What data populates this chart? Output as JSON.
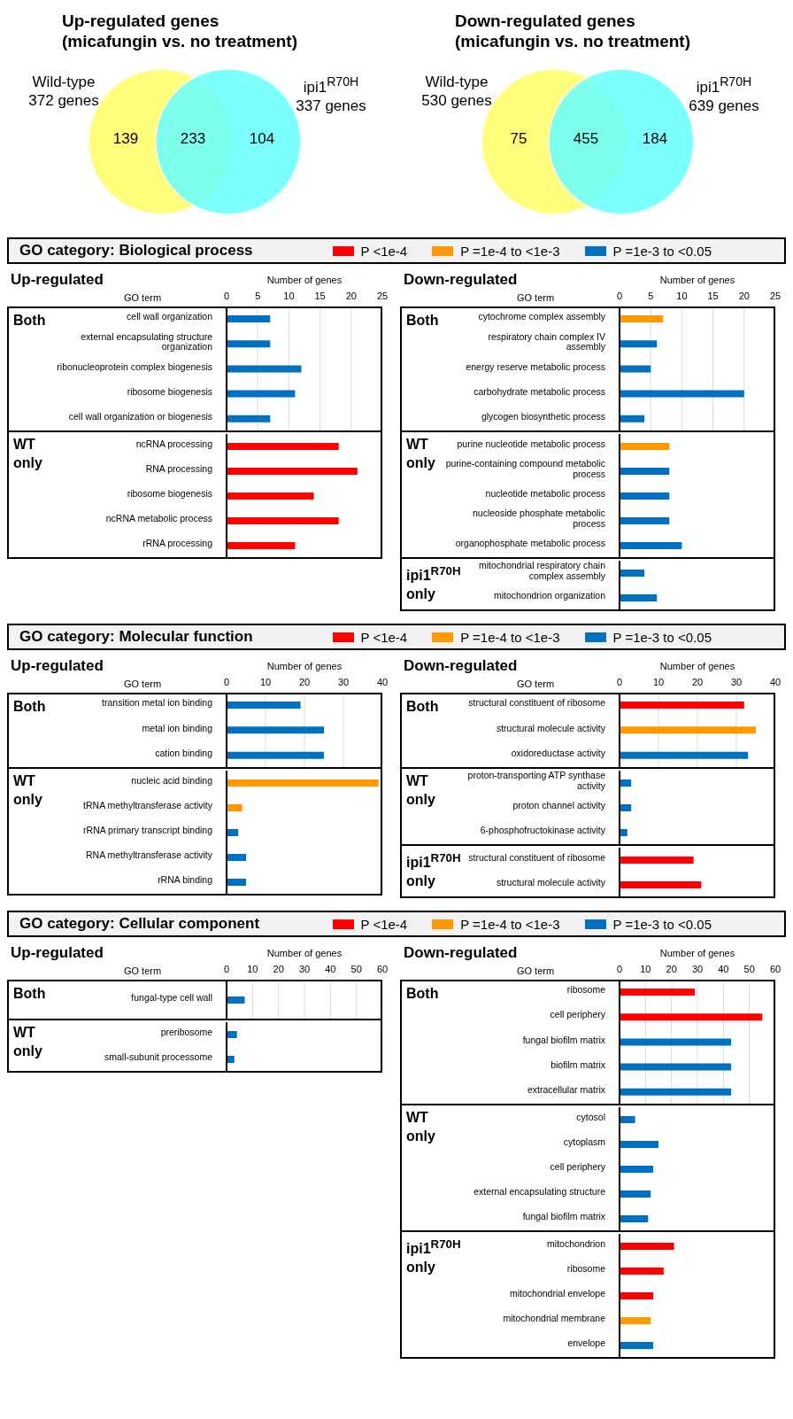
{
  "chart_data": [
    {
      "type": "other",
      "title": "Up-regulated genes\n(micafungin vs. no treatment)",
      "colors": [
        "#ffff66",
        "#66ffff"
      ],
      "annotations": [
        "Wild-type\n372 genes",
        "ipi1$^{R70H}$\n337 genes",
        "139",
        "233",
        "104"
      ]
    },
    {
      "type": "other",
      "title": "Down-regulated genes\n(micafungin vs. no treatment)",
      "colors": [
        "#ffff66",
        "#66ffff"
      ],
      "annotations": [
        "Wild-type\n530 genes",
        "ipi1$^{R70H}$\n639 genes",
        "75",
        "455",
        "184"
      ]
    },
    {
      "type": "other",
      "title": "GO category: Biological process",
      "legend": "top right",
      "series": [
        {
          "name": "P <1e-4",
          "color": "#ff0000"
        },
        {
          "name": "P =1e-4 to <1e-3",
          "color": "#ff9900"
        },
        {
          "name": "P =1e-3 to <0.05",
          "color": "#0070c0"
        }
      ]
    },
    {
      "type": "bar",
      "orientation": "horizontal",
      "title": "Up-regulated",
      "xlabel": "Number of genes",
      "ylabel": "GO term",
      "xlim": [
        0,
        25
      ],
      "xticks": [
        0,
        5,
        10,
        15,
        20,
        25
      ],
      "grid": "x",
      "annotations": [
        "Both"
      ],
      "categories": [
        "cell wall organization",
        "external encapsulating structure organization",
        "ribonucleoprotein complex biogenesis",
        "ribosome biogenesis",
        "cell wall organization or biogenesis"
      ],
      "values": [
        7,
        7,
        12,
        11,
        7
      ],
      "colors": [
        "#0070c0",
        "#0070c0",
        "#0070c0",
        "#0070c0",
        "#0070c0"
      ]
    },
    {
      "type": "bar",
      "orientation": "horizontal",
      "xlim": [
        0,
        25
      ],
      "xticks": [
        0,
        5,
        10,
        15,
        20,
        25
      ],
      "grid": "x",
      "tick_labels": "y",
      "annotations": [
        "WT only"
      ],
      "categories": [
        "ncRNA processing",
        "RNA processing",
        "ribosome biogenesis",
        "ncRNA metabolic process",
        "rRNA processing"
      ],
      "values": [
        18,
        21,
        14,
        18,
        11
      ],
      "colors": [
        "#ff0000",
        "#ff0000",
        "#ff0000",
        "#ff0000",
        "#ff0000"
      ]
    },
    {
      "type": "bar",
      "orientation": "horizontal",
      "title": "Down-regulated",
      "xlabel": "Number of genes",
      "ylabel": "GO term",
      "xlim": [
        0,
        25
      ],
      "xticks": [
        0,
        5,
        10,
        15,
        20,
        25
      ],
      "grid": "x",
      "annotations": [
        "Both"
      ],
      "categories": [
        "cytochrome complex assembly",
        "respiratory chain complex IV assembly",
        "energy reserve metabolic process",
        "carbohydrate metabolic process",
        "glycogen biosynthetic process"
      ],
      "values": [
        7,
        6,
        5,
        20,
        4
      ],
      "colors": [
        "#ff9900",
        "#0070c0",
        "#0070c0",
        "#0070c0",
        "#0070c0"
      ]
    },
    {
      "type": "bar",
      "orientation": "horizontal",
      "xlim": [
        0,
        25
      ],
      "xticks": [
        0,
        5,
        10,
        15,
        20,
        25
      ],
      "grid": "x",
      "tick_labels": "y",
      "annotations": [
        "WT only"
      ],
      "categories": [
        "purine nucleotide metabolic process",
        "purine-containing compound metabolic process",
        "nucleotide metabolic process",
        "nucleoside phosphate metabolic process",
        "organophosphate metabolic process"
      ],
      "values": [
        8,
        8,
        8,
        8,
        10
      ],
      "colors": [
        "#ff9900",
        "#0070c0",
        "#0070c0",
        "#0070c0",
        "#0070c0"
      ]
    },
    {
      "type": "bar",
      "orientation": "horizontal",
      "xlim": [
        0,
        25
      ],
      "xticks": [
        0,
        5,
        10,
        15,
        20,
        25
      ],
      "grid": "x",
      "tick_labels": "y",
      "annotations": [
        "ipi1$^{R70H}$ only"
      ],
      "categories": [
        "mitochondrial respiratory chain complex assembly",
        "mitochondrion organization"
      ],
      "values": [
        4,
        6
      ],
      "colors": [
        "#0070c0",
        "#0070c0"
      ]
    },
    {
      "type": "other",
      "title": "GO category: Molecular function",
      "legend": "top right",
      "series": [
        {
          "name": "P <1e-4",
          "color": "#ff0000"
        },
        {
          "name": "P =1e-4 to <1e-3",
          "color": "#ff9900"
        },
        {
          "name": "P =1e-3 to <0.05",
          "color": "#0070c0"
        }
      ]
    },
    {
      "type": "bar",
      "orientation": "horizontal",
      "title": "Up-regulated",
      "xlabel": "Number of genes",
      "ylabel": "GO term",
      "xlim": [
        0,
        40
      ],
      "xticks": [
        0,
        10,
        20,
        30,
        40
      ],
      "grid": "x",
      "annotations": [
        "Both"
      ],
      "categories": [
        "transition metal ion binding",
        "metal ion binding",
        "cation binding"
      ],
      "values": [
        19,
        25,
        25
      ],
      "colors": [
        "#0070c0",
        "#0070c0",
        "#0070c0"
      ]
    },
    {
      "type": "bar",
      "orientation": "horizontal",
      "xlim": [
        0,
        40
      ],
      "xticks": [
        0,
        10,
        20,
        30,
        40
      ],
      "grid": "x",
      "tick_labels": "y",
      "annotations": [
        "WT only"
      ],
      "categories": [
        "nucleic acid binding",
        "tRNA methyltransferase activity",
        "rRNA primary transcript binding",
        "RNA methyltransferase activity",
        "rRNA binding"
      ],
      "values": [
        39,
        4,
        3,
        5,
        5
      ],
      "colors": [
        "#ff9900",
        "#ff9900",
        "#0070c0",
        "#0070c0",
        "#0070c0"
      ]
    },
    {
      "type": "bar",
      "orientation": "horizontal",
      "title": "Down-regulated",
      "xlabel": "Number of genes",
      "ylabel": "GO term",
      "xlim": [
        0,
        40
      ],
      "xticks": [
        0,
        10,
        20,
        30,
        40
      ],
      "grid": "x",
      "annotations": [
        "Both"
      ],
      "categories": [
        "structural constituent of ribosome",
        "structural molecule activity",
        "oxidoreductase activity"
      ],
      "values": [
        32,
        35,
        33
      ],
      "colors": [
        "#ff0000",
        "#ff9900",
        "#0070c0"
      ]
    },
    {
      "type": "bar",
      "orientation": "horizontal",
      "xlim": [
        0,
        40
      ],
      "xticks": [
        0,
        10,
        20,
        30,
        40
      ],
      "grid": "x",
      "tick_labels": "y",
      "annotations": [
        "WT only"
      ],
      "categories": [
        "proton-transporting ATP synthase activity",
        "proton channel activity",
        "6-phosphofructokinase activity"
      ],
      "values": [
        3,
        3,
        2
      ],
      "colors": [
        "#0070c0",
        "#0070c0",
        "#0070c0"
      ]
    },
    {
      "type": "bar",
      "orientation": "horizontal",
      "xlim": [
        0,
        40
      ],
      "xticks": [
        0,
        10,
        20,
        30,
        40
      ],
      "grid": "x",
      "tick_labels": "y",
      "annotations": [
        "ipi1$^{R70H}$ only"
      ],
      "categories": [
        "structural constituent of ribosome",
        "structural molecule activity"
      ],
      "values": [
        19,
        21
      ],
      "colors": [
        "#ff0000",
        "#ff0000"
      ]
    },
    {
      "type": "other",
      "title": "GO category: Cellular component",
      "legend": "top right",
      "series": [
        {
          "name": "P <1e-4",
          "color": "#ff0000"
        },
        {
          "name": "P =1e-4 to <1e-3",
          "color": "#ff9900"
        },
        {
          "name": "P =1e-3 to <0.05",
          "color": "#0070c0"
        }
      ]
    },
    {
      "type": "bar",
      "orientation": "horizontal",
      "title": "Up-regulated",
      "xlabel": "Number of genes",
      "ylabel": "GO term",
      "xlim": [
        0,
        60
      ],
      "xticks": [
        0,
        10,
        20,
        30,
        40,
        50,
        60
      ],
      "grid": "x",
      "annotations": [
        "Both"
      ],
      "categories": [
        "fungal-type cell wall"
      ],
      "values": [
        7
      ],
      "colors": [
        "#0070c0"
      ]
    },
    {
      "type": "bar",
      "orientation": "horizontal",
      "xlim": [
        0,
        60
      ],
      "xticks": [
        0,
        10,
        20,
        30,
        40,
        50,
        60
      ],
      "grid": "x",
      "tick_labels": "y",
      "annotations": [
        "WT only"
      ],
      "categories": [
        "preribosome",
        "small-subunit processome"
      ],
      "values": [
        4,
        3
      ],
      "colors": [
        "#0070c0",
        "#0070c0"
      ]
    },
    {
      "type": "bar",
      "orientation": "horizontal",
      "title": "Down-regulated",
      "xlabel": "Number of genes",
      "ylabel": "GO term",
      "xlim": [
        0,
        60
      ],
      "xticks": [
        0,
        10,
        20,
        30,
        40,
        50,
        60
      ],
      "grid": "x",
      "annotations": [
        "Both"
      ],
      "categories": [
        "ribosome",
        "cell periphery",
        "fungal biofilm matrix",
        "biofilm matrix",
        "extracellular matrix"
      ],
      "values": [
        29,
        55,
        43,
        43,
        43
      ],
      "colors": [
        "#ff0000",
        "#ff0000",
        "#0070c0",
        "#0070c0",
        "#0070c0"
      ]
    },
    {
      "type": "bar",
      "orientation": "horizontal",
      "xlim": [
        0,
        60
      ],
      "xticks": [
        0,
        10,
        20,
        30,
        40,
        50,
        60
      ],
      "grid": "x",
      "tick_labels": "y",
      "annotations": [
        "WT only"
      ],
      "categories": [
        "cytosol",
        "cytoplasm",
        "cell periphery",
        "external encapsulating structure",
        "fungal biofilm matrix"
      ],
      "values": [
        6,
        15,
        13,
        12,
        11
      ],
      "colors": [
        "#0070c0",
        "#0070c0",
        "#0070c0",
        "#0070c0",
        "#0070c0"
      ]
    },
    {
      "type": "bar",
      "orientation": "horizontal",
      "xlim": [
        0,
        60
      ],
      "xticks": [
        0,
        10,
        20,
        30,
        40,
        50,
        60
      ],
      "grid": "x",
      "tick_labels": "y",
      "annotations": [
        "ipi1$^{R70H}$ only"
      ],
      "categories": [
        "mitochondrion",
        "ribosome",
        "mitochondrial envelope",
        "mitochondrial membrane",
        "envelope"
      ],
      "values": [
        21,
        17,
        13,
        12,
        13
      ],
      "colors": [
        "#ff0000",
        "#ff0000",
        "#ff0000",
        "#ff9900",
        "#0070c0"
      ]
    }
  ]
}
